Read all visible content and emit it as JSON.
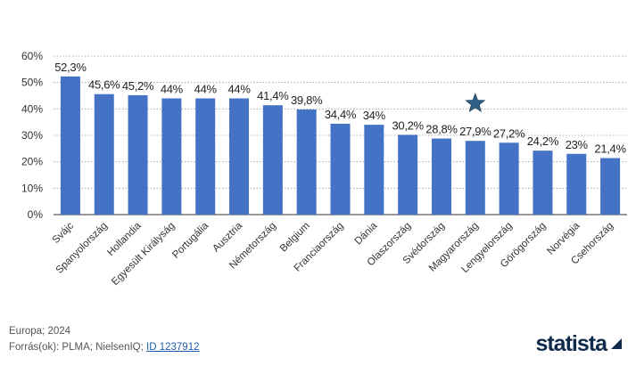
{
  "chart_data": {
    "type": "bar",
    "categories": [
      "Svájc",
      "Spanyolország",
      "Hollandia",
      "Egyesült Királyság",
      "Portugália",
      "Ausztria",
      "Németország",
      "Belgium",
      "Franciaország",
      "Dánia",
      "Olaszország",
      "Svédország",
      "Magyarország",
      "Lengyelország",
      "Görögország",
      "Norvégia",
      "Csehország"
    ],
    "values": [
      52.3,
      45.6,
      45.2,
      44,
      44,
      44,
      41.4,
      39.8,
      34.4,
      34,
      30.2,
      28.8,
      27.9,
      27.2,
      24.2,
      23,
      21.4
    ],
    "value_labels": [
      "52,3%",
      "45,6%",
      "45,2%",
      "44%",
      "44%",
      "44%",
      "41,4%",
      "39,8%",
      "34,4%",
      "34%",
      "30,2%",
      "28,8%",
      "27,9%",
      "27,2%",
      "24,2%",
      "23%",
      "21,4%"
    ],
    "highlighted_category": "Magyarország",
    "ylim": [
      0,
      60
    ],
    "yticks": [
      0,
      10,
      20,
      30,
      40,
      50,
      60
    ],
    "ytick_labels": [
      "0%",
      "10%",
      "20%",
      "30%",
      "40%",
      "50%",
      "60%"
    ],
    "grid": true,
    "bar_color": "#4472c4",
    "marker_color": "#2e5f84",
    "title": "",
    "xlabel": "",
    "ylabel": ""
  },
  "footer": {
    "region": "Europa; 2024",
    "source_prefix": "Forrás(ok): PLMA; NielsenIQ; ",
    "source_id": "ID 1237912"
  },
  "brand": {
    "name": "statista"
  }
}
